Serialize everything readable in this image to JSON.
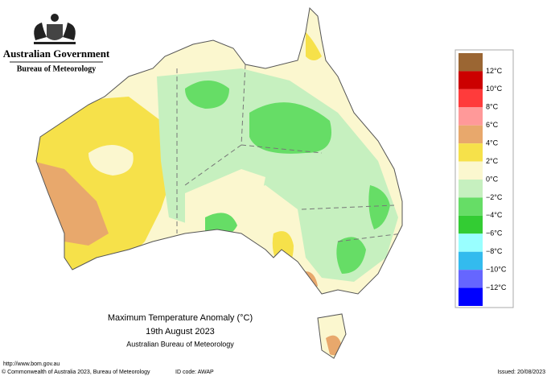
{
  "header": {
    "government": "Australian Government",
    "bureau": "Bureau of Meteorology"
  },
  "title": {
    "line1": "Maximum Temperature Anomaly (°C)",
    "line2": "19th August 2023",
    "line3": "Australian Bureau of Meteorology"
  },
  "legend": {
    "swatches": [
      "#9b6633",
      "#cc0000",
      "#ff3b3b",
      "#ff9999",
      "#e8a86c",
      "#f6e14a",
      "#fbf7cf",
      "#c6f0bf",
      "#66dd66",
      "#33cc33",
      "#99ffff",
      "#33bbee",
      "#6666ff",
      "#0000ff"
    ],
    "labels": [
      "12°C",
      "10°C",
      "8°C",
      "6°C",
      "4°C",
      "2°C",
      "0°C",
      "−2°C",
      "−4°C",
      "−6°C",
      "−8°C",
      "−10°C",
      "−12°C"
    ]
  },
  "footer": {
    "url": "http://www.bom.gov.au",
    "copyright": "© Commonwealth of Australia 2023, Bureau of Meteorology",
    "id_code": "ID code: AWAP",
    "issued": "Issued: 20/08/2023"
  }
}
